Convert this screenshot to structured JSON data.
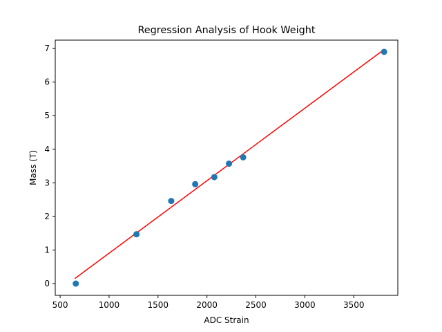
{
  "chart_data": {
    "type": "scatter",
    "title": "Regression Analysis of Hook Weight",
    "xlabel": "ADC Strain",
    "ylabel": "Mass (T)",
    "xlim": [
      450,
      3950
    ],
    "ylim": [
      -0.35,
      7.25
    ],
    "xticks": [
      500,
      1000,
      1500,
      2000,
      2500,
      3000,
      3500
    ],
    "yticks": [
      0,
      1,
      2,
      3,
      4,
      5,
      6,
      7
    ],
    "grid": false,
    "series": [
      {
        "type": "scatter",
        "color": "#1f77b4",
        "points": [
          {
            "x": 660,
            "y": 0.0
          },
          {
            "x": 1280,
            "y": 1.47
          },
          {
            "x": 1635,
            "y": 2.46
          },
          {
            "x": 1880,
            "y": 2.96
          },
          {
            "x": 2075,
            "y": 3.17
          },
          {
            "x": 2225,
            "y": 3.57
          },
          {
            "x": 2370,
            "y": 3.76
          },
          {
            "x": 3810,
            "y": 6.9
          }
        ]
      },
      {
        "type": "line",
        "color": "#ff0000",
        "points": [
          {
            "x": 650,
            "y": 0.15
          },
          {
            "x": 3810,
            "y": 6.97
          }
        ]
      }
    ]
  }
}
